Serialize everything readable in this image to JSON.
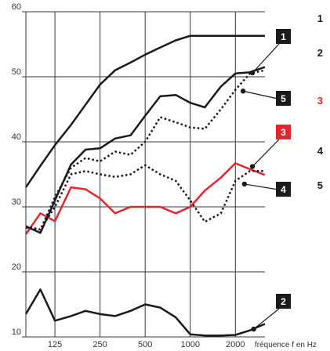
{
  "chart_data": {
    "type": "line",
    "xlabel": "fréquence f en Hz",
    "ylabel": "",
    "title": "",
    "x_scale": "log",
    "x_ticks": [
      125,
      250,
      500,
      1000,
      2000
    ],
    "x_tick_labels": [
      "125",
      "250",
      "500",
      "1000",
      "2000"
    ],
    "y_ticks": [
      10,
      20,
      30,
      40,
      50,
      60
    ],
    "y_tick_labels": [
      "10",
      "20",
      "30",
      "40",
      "50",
      "60"
    ],
    "xlim": [
      80,
      3150
    ],
    "ylim": [
      10,
      60
    ],
    "grid": "vertical lines at x ticks, horizontal lines at 20/30/40/50",
    "series": [
      {
        "id": "1",
        "color": "#1a1a1a",
        "style": "solid",
        "width": 2.5,
        "x": [
          80,
          100,
          125,
          160,
          200,
          250,
          315,
          400,
          500,
          630,
          800,
          1000,
          1250,
          1600,
          2000,
          2500,
          3150
        ],
        "y": [
          33,
          36.3,
          39.5,
          42.6,
          45.7,
          48.8,
          51,
          52.2,
          53.4,
          54.5,
          55.6,
          56.3,
          56.3,
          56.3,
          56.3,
          56.3,
          56.3
        ]
      },
      {
        "id": "2",
        "color": "#1a1a1a",
        "style": "solid",
        "width": 2.5,
        "x": [
          80,
          100,
          125,
          160,
          200,
          250,
          315,
          400,
          500,
          630,
          800,
          1000,
          1250,
          1600,
          2000,
          2500,
          3150
        ],
        "y": [
          13.5,
          17.3,
          12.5,
          13.2,
          14,
          13.5,
          13.2,
          14,
          15,
          14.5,
          13,
          10.4,
          10.2,
          10.2,
          10.3,
          11,
          12
        ]
      },
      {
        "id": "3",
        "color": "#e3262b",
        "style": "solid",
        "width": 2.5,
        "x": [
          80,
          100,
          125,
          160,
          200,
          250,
          315,
          400,
          500,
          630,
          800,
          1000,
          1250,
          1600,
          2000,
          2500,
          3150
        ],
        "y": [
          25.8,
          29,
          27.8,
          33,
          32.7,
          31.3,
          29,
          30,
          30,
          30,
          29,
          30,
          32.5,
          34.5,
          36.7,
          35.8,
          34.9
        ]
      },
      {
        "id": "4",
        "color": "#1a1a1a",
        "style": "dotted",
        "width": 2.5,
        "x": [
          80,
          100,
          125,
          160,
          200,
          250,
          315,
          400,
          500,
          630,
          800,
          1000,
          1250,
          1600,
          2000,
          2500,
          3150
        ],
        "y": [
          27,
          26.5,
          30,
          35,
          35.5,
          35,
          34.6,
          35,
          36.4,
          35,
          34,
          31,
          27.7,
          29,
          34,
          35.5,
          35.5
        ]
      },
      {
        "id": "5",
        "color": "#1a1a1a",
        "style": "dotted",
        "width": 2.5,
        "x": [
          80,
          100,
          125,
          160,
          200,
          250,
          315,
          400,
          500,
          630,
          800,
          1000,
          1250,
          1600,
          2000,
          2500,
          3150
        ],
        "y": [
          26.8,
          26.5,
          31.5,
          36,
          37.5,
          37,
          38.5,
          38,
          40,
          43.8,
          43,
          42.2,
          42,
          45,
          48,
          50.5,
          51
        ]
      },
      {
        "id": "6",
        "color": "#1a1a1a",
        "style": "solid",
        "width": 2.5,
        "x": [
          80,
          100,
          125,
          160,
          200,
          250,
          315,
          400,
          500,
          630,
          800,
          1000,
          1250,
          1600,
          2000,
          2500,
          3150
        ],
        "y": [
          27,
          26,
          31,
          36.5,
          38.8,
          39,
          40.5,
          41,
          44,
          47,
          47.2,
          46,
          45.3,
          48.5,
          50.5,
          50.7,
          51.5
        ]
      }
    ],
    "callouts": [
      {
        "label": "1",
        "color": "#1a1a1a"
      },
      {
        "label": "5",
        "color": "#1a1a1a"
      },
      {
        "label": "3",
        "color": "#e3262b"
      },
      {
        "label": "4",
        "color": "#1a1a1a"
      },
      {
        "label": "2",
        "color": "#1a1a1a"
      }
    ],
    "legend": [
      {
        "label": "1",
        "color": "#1a1a1a"
      },
      {
        "label": "2",
        "color": "#1a1a1a"
      },
      {
        "label": "3",
        "color": "#e3262b"
      },
      {
        "label": "4",
        "color": "#1a1a1a"
      },
      {
        "label": "5",
        "color": "#1a1a1a"
      }
    ]
  }
}
